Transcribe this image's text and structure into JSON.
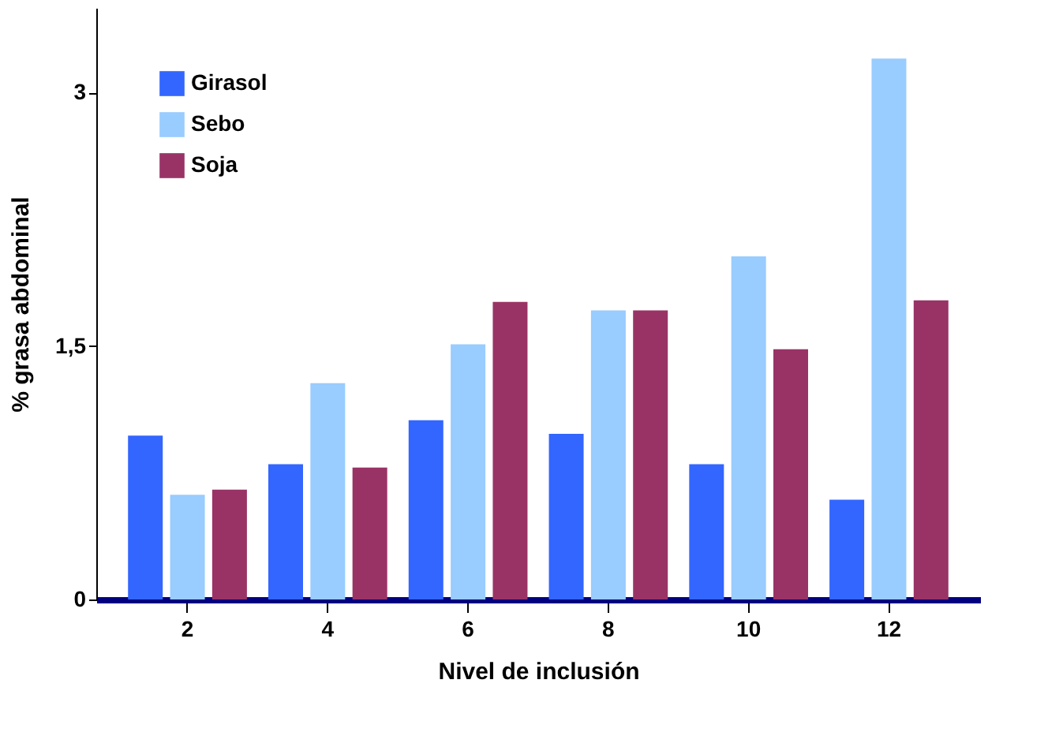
{
  "chart_data": {
    "type": "bar",
    "xlabel": "Nivel de inclusión",
    "ylabel": "% grasa abdominal",
    "categories": [
      "2",
      "4",
      "6",
      "8",
      "10",
      "12"
    ],
    "series": [
      {
        "name": "Girasol",
        "color": "#3366ff",
        "values": [
          0.97,
          0.8,
          1.06,
          0.98,
          0.8,
          0.59
        ]
      },
      {
        "name": "Sebo",
        "color": "#99ccff",
        "values": [
          0.62,
          1.28,
          1.51,
          1.71,
          2.03,
          3.2
        ]
      },
      {
        "name": "Soja",
        "color": "#993366",
        "values": [
          0.65,
          0.78,
          1.76,
          1.71,
          1.48,
          1.77
        ]
      }
    ],
    "ylim": [
      0,
      3.5
    ],
    "yticks": [
      0,
      {
        "value": 1.5,
        "label": "1,5"
      },
      3
    ],
    "grid": false,
    "legend": "top left"
  }
}
